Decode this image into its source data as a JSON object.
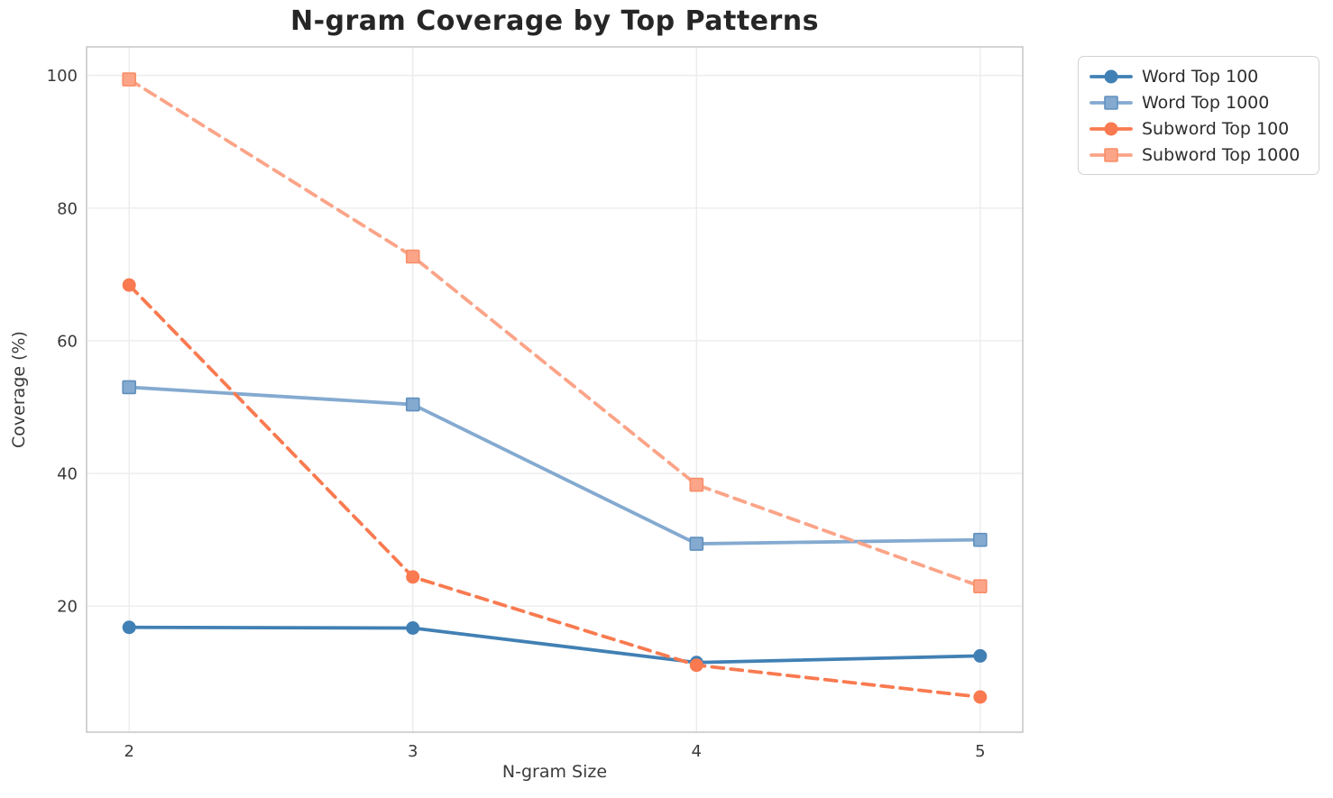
{
  "chart_data": {
    "type": "line",
    "title": "N-gram Coverage by Top Patterns",
    "xlabel": "N-gram Size",
    "ylabel": "Coverage (%)",
    "categories": [
      2,
      3,
      4,
      5
    ],
    "xticks": [
      "2",
      "3",
      "4",
      "5"
    ],
    "yticks": [
      20,
      40,
      60,
      80,
      100
    ],
    "xlim": [
      1.85,
      5.15
    ],
    "ylim": [
      1.0,
      104.3
    ],
    "grid": true,
    "legend_position": "outside-upper-right",
    "series": [
      {
        "name": "Word Top 100",
        "values": [
          16.8,
          16.7,
          11.5,
          12.5
        ],
        "color": "#4180B4",
        "edge_color": "#4180B4",
        "linestyle": "solid",
        "marker": "circle"
      },
      {
        "name": "Word Top 1000",
        "values": [
          53.0,
          50.4,
          29.4,
          30.0
        ],
        "color": "#84AAD0",
        "edge_color": "#6090BE",
        "linestyle": "solid",
        "marker": "square"
      },
      {
        "name": "Subword Top 100",
        "values": [
          68.4,
          24.4,
          11.1,
          6.3
        ],
        "color": "#F97A50",
        "edge_color": "#F97A50",
        "linestyle": "dashed",
        "marker": "circle"
      },
      {
        "name": "Subword Top 1000",
        "values": [
          99.4,
          72.7,
          38.3,
          23.0
        ],
        "color": "#FBA488",
        "edge_color": "#F98D68",
        "linestyle": "dashed",
        "marker": "square"
      }
    ],
    "style": {
      "grid_color": "#ececec",
      "spine_color": "#c9c9c9",
      "background": "#ffffff",
      "line_width": 3.8,
      "dash_pattern": "13 8"
    }
  }
}
